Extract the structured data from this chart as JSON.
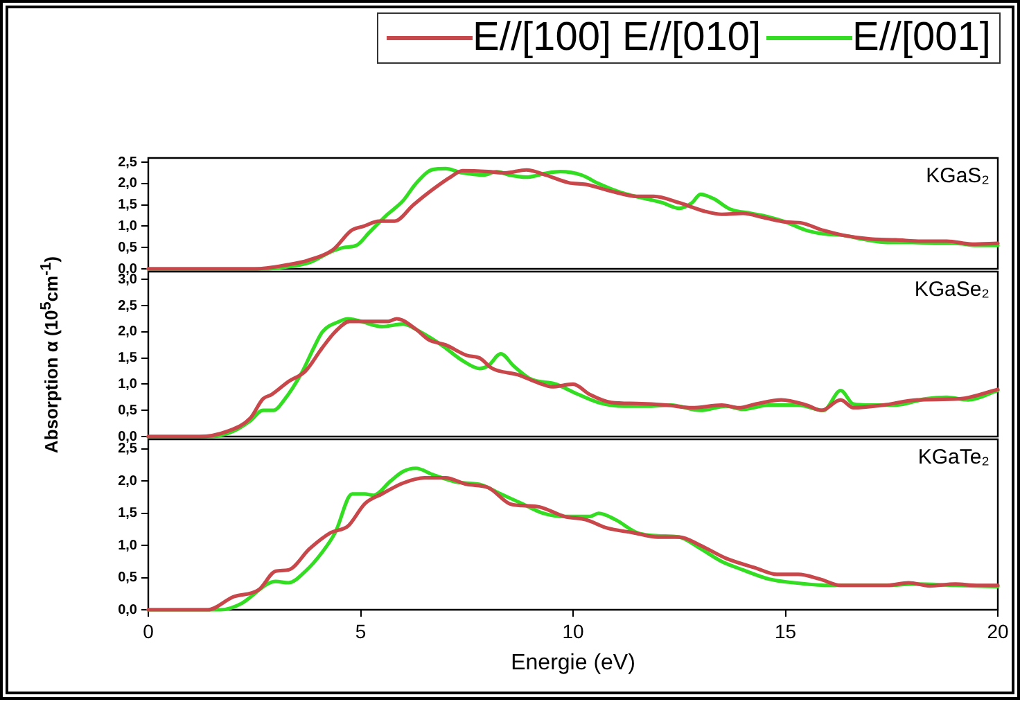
{
  "chart_data": [
    {
      "type": "line",
      "legend": "top right",
      "tick_labels": "y",
      "annotations": [
        "KGaS₂"
      ],
      "xlim": [
        0,
        20
      ],
      "ylim": [
        0,
        2.6
      ],
      "yticks": [
        {
          "value": 0,
          "label": "0,0"
        },
        {
          "value": 0.5,
          "label": "0,5"
        },
        {
          "value": 1,
          "label": "1,0"
        },
        {
          "value": 1.5,
          "label": "1,5"
        },
        {
          "value": 2,
          "label": "2,0"
        },
        {
          "value": 2.5,
          "label": "2,5"
        }
      ],
      "series": [
        {
          "name": "E//[100] E//[010]",
          "color": "#c8474a",
          "x": [
            0,
            2.5,
            3.3,
            3.76,
            4.35,
            4.78,
            5.07,
            5.44,
            5.8,
            6.24,
            6.68,
            7.11,
            7.4,
            8.0,
            8.4,
            8.9,
            9.3,
            9.9,
            10.3,
            10.9,
            11.5,
            11.9,
            12.5,
            13.1,
            13.5,
            14.0,
            14.5,
            15.0,
            15.35,
            15.9,
            16.4,
            17.0,
            17.6,
            18.2,
            18.8,
            19.4,
            20
          ],
          "values": [
            0,
            0,
            0.1,
            0.2,
            0.45,
            0.9,
            1.0,
            1.12,
            1.12,
            1.5,
            1.85,
            2.15,
            2.3,
            2.28,
            2.25,
            2.32,
            2.22,
            2.02,
            1.98,
            1.82,
            1.7,
            1.7,
            1.55,
            1.35,
            1.28,
            1.3,
            1.2,
            1.1,
            1.08,
            0.9,
            0.78,
            0.7,
            0.68,
            0.65,
            0.65,
            0.58,
            0.6
          ]
        },
        {
          "name": "E//[001]",
          "color": "#33dd22",
          "x": [
            0,
            2.7,
            3.3,
            3.8,
            4.3,
            4.6,
            4.9,
            5.2,
            5.6,
            6.0,
            6.3,
            6.7,
            7.0,
            7.4,
            7.9,
            8.2,
            8.5,
            8.9,
            9.4,
            9.7,
            10.2,
            10.6,
            11.1,
            11.6,
            12.1,
            12.5,
            12.8,
            13.0,
            13.3,
            13.7,
            14.2,
            14.6,
            15.0,
            15.5,
            15.9,
            16.4,
            16.8,
            17.4,
            18.0,
            18.5,
            19.0,
            19.5,
            20
          ],
          "values": [
            0,
            0,
            0.05,
            0.15,
            0.4,
            0.5,
            0.55,
            0.85,
            1.25,
            1.6,
            2.0,
            2.33,
            2.35,
            2.25,
            2.2,
            2.28,
            2.2,
            2.15,
            2.25,
            2.28,
            2.2,
            2.0,
            1.8,
            1.67,
            1.55,
            1.42,
            1.55,
            1.75,
            1.65,
            1.4,
            1.3,
            1.22,
            1.1,
            0.9,
            0.82,
            0.78,
            0.7,
            0.62,
            0.62,
            0.6,
            0.6,
            0.55,
            0.55
          ]
        }
      ]
    },
    {
      "type": "line",
      "tick_labels": "y",
      "ylabel": "Absorption α (10$^{5}$cm$^{-1}$)",
      "annotations": [
        "KGaSe₂"
      ],
      "xlim": [
        0,
        20
      ],
      "ylim": [
        0,
        3.15
      ],
      "yticks": [
        {
          "value": 0,
          "label": "0,0"
        },
        {
          "value": 0.5,
          "label": "0,5"
        },
        {
          "value": 1,
          "label": "1,0"
        },
        {
          "value": 1.5,
          "label": "1,5"
        },
        {
          "value": 2,
          "label": "2,0"
        },
        {
          "value": 2.5,
          "label": "2,5"
        },
        {
          "value": 3,
          "label": "3,0"
        }
      ],
      "series": [
        {
          "color": "#c8474a",
          "x": [
            0,
            1.2,
            1.86,
            2.4,
            2.7,
            2.9,
            3.3,
            3.7,
            4.1,
            4.4,
            4.74,
            5.26,
            5.65,
            5.85,
            6.3,
            6.6,
            7.0,
            7.5,
            7.8,
            8.1,
            8.7,
            9.2,
            9.5,
            10.0,
            10.4,
            10.9,
            11.5,
            12.2,
            12.8,
            13.5,
            13.9,
            14.3,
            14.9,
            15.5,
            15.85,
            16.3,
            16.6,
            17.3,
            18.1,
            19.1,
            20
          ],
          "values": [
            0,
            0,
            0.1,
            0.35,
            0.72,
            0.8,
            1.05,
            1.25,
            1.7,
            2.0,
            2.2,
            2.2,
            2.2,
            2.25,
            2.05,
            1.85,
            1.75,
            1.55,
            1.5,
            1.3,
            1.18,
            1.02,
            0.95,
            1.0,
            0.8,
            0.65,
            0.63,
            0.6,
            0.55,
            0.6,
            0.55,
            0.62,
            0.7,
            0.6,
            0.5,
            0.7,
            0.55,
            0.6,
            0.7,
            0.72,
            0.9
          ]
        },
        {
          "color": "#33dd22",
          "x": [
            0,
            1.5,
            2.0,
            2.4,
            2.7,
            2.95,
            3.2,
            3.6,
            3.9,
            4.1,
            4.5,
            4.7,
            5.0,
            5.5,
            6.0,
            6.4,
            6.9,
            7.4,
            7.8,
            8.0,
            8.3,
            8.6,
            9.0,
            9.6,
            10.0,
            10.6,
            11.2,
            11.8,
            12.3,
            13.0,
            13.6,
            14.0,
            14.6,
            15.3,
            15.9,
            16.3,
            16.6,
            17.0,
            17.6,
            18.3,
            18.8,
            19.3,
            20
          ],
          "values": [
            0,
            0,
            0.1,
            0.3,
            0.5,
            0.5,
            0.7,
            1.2,
            1.7,
            2.0,
            2.2,
            2.25,
            2.2,
            2.1,
            2.15,
            2.0,
            1.75,
            1.45,
            1.3,
            1.35,
            1.58,
            1.35,
            1.1,
            1.0,
            0.85,
            0.65,
            0.58,
            0.58,
            0.6,
            0.5,
            0.58,
            0.52,
            0.6,
            0.6,
            0.5,
            0.88,
            0.62,
            0.6,
            0.6,
            0.72,
            0.75,
            0.7,
            0.88
          ]
        }
      ]
    },
    {
      "type": "line",
      "xlabel": "Energie (eV)",
      "annotations": [
        "KGaTe₂"
      ],
      "xlim": [
        0,
        20
      ],
      "xticks": [
        0,
        5,
        10,
        15,
        20
      ],
      "ylim": [
        0,
        2.65
      ],
      "yticks": [
        {
          "value": 0,
          "label": "0,0"
        },
        {
          "value": 0.5,
          "label": "0,5"
        },
        {
          "value": 1,
          "label": "1,0"
        },
        {
          "value": 1.5,
          "label": "1,5"
        },
        {
          "value": 2,
          "label": "2,0"
        },
        {
          "value": 2.5,
          "label": "2,5"
        }
      ],
      "series": [
        {
          "color": "#c8474a",
          "x": [
            0,
            1.4,
            2.0,
            2.6,
            3.0,
            3.3,
            3.8,
            4.3,
            4.7,
            5.1,
            5.5,
            6.0,
            6.5,
            7.0,
            7.5,
            8.0,
            8.5,
            8.8,
            9.2,
            9.8,
            10.3,
            10.8,
            11.4,
            12.0,
            12.5,
            13.0,
            13.6,
            14.3,
            14.8,
            15.3,
            15.8,
            16.3,
            17.0,
            17.4,
            17.9,
            18.4,
            19.0,
            19.5,
            20
          ],
          "values": [
            0,
            0,
            0.2,
            0.31,
            0.6,
            0.62,
            0.95,
            1.2,
            1.3,
            1.65,
            1.8,
            1.97,
            2.05,
            2.05,
            1.95,
            1.9,
            1.65,
            1.62,
            1.6,
            1.45,
            1.4,
            1.27,
            1.2,
            1.13,
            1.13,
            1.0,
            0.8,
            0.65,
            0.55,
            0.55,
            0.48,
            0.38,
            0.38,
            0.38,
            0.42,
            0.37,
            0.4,
            0.38,
            0.38
          ]
        },
        {
          "color": "#33dd22",
          "x": [
            0,
            1.7,
            2.2,
            2.8,
            3.0,
            3.3,
            3.7,
            4.1,
            4.4,
            4.8,
            5.1,
            5.3,
            5.7,
            6.0,
            6.3,
            6.7,
            7.3,
            7.8,
            8.3,
            8.8,
            9.3,
            9.8,
            10.4,
            10.6,
            11.0,
            11.5,
            12.0,
            12.5,
            13.0,
            13.5,
            14.0,
            14.6,
            15.2,
            16.0,
            16.5,
            17.0,
            17.4,
            18.0,
            19.0,
            20
          ],
          "values": [
            0,
            0,
            0.1,
            0.4,
            0.44,
            0.42,
            0.6,
            0.9,
            1.2,
            1.8,
            1.8,
            1.78,
            2.0,
            2.15,
            2.2,
            2.1,
            1.98,
            1.95,
            1.8,
            1.65,
            1.5,
            1.45,
            1.45,
            1.5,
            1.4,
            1.2,
            1.15,
            1.13,
            0.95,
            0.75,
            0.62,
            0.48,
            0.42,
            0.38,
            0.38,
            0.38,
            0.38,
            0.4,
            0.38,
            0.36
          ]
        }
      ]
    }
  ]
}
